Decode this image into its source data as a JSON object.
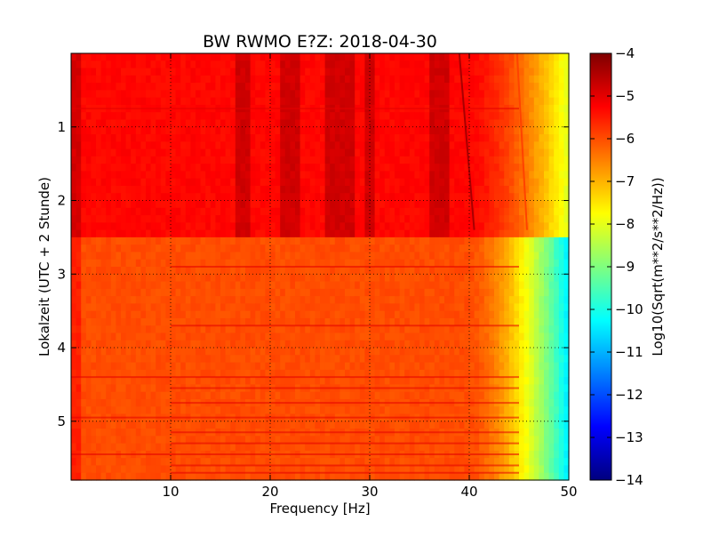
{
  "chart_data": {
    "type": "heatmap",
    "title": "BW RWMO E?Z: 2018-04-30",
    "xlabel": "Frequency [Hz]",
    "ylabel": "Lokalzeit (UTC + 2 Stunde)",
    "xlim": [
      0,
      50
    ],
    "ylim": [
      5.8,
      0
    ],
    "x_ticks": [
      10,
      20,
      30,
      40,
      50
    ],
    "y_ticks": [
      1,
      2,
      3,
      4,
      5
    ],
    "grid": true,
    "colormap": "jet",
    "colorbar": {
      "label": "Log10(Sqrt(m**2/s**2/Hz))",
      "range": [
        -14,
        -4
      ],
      "ticks": [
        -4,
        -5,
        -6,
        -7,
        -8,
        -9,
        -10,
        -11,
        -12,
        -13,
        -14
      ]
    },
    "features": {
      "high_energy_period_hours": [
        0,
        2.45
      ],
      "regime_change_hour": 2.45,
      "low_level_background": -6.0,
      "high_level_background": -5.3,
      "falloff_start_hz": 40,
      "falloff_end_hz": 50,
      "falloff_min_value": -10.5,
      "drifting_lines": [
        {
          "f_start_hz": 39.0,
          "f_end_hz": 40.5,
          "t_start_h": 0,
          "t_end_h": 2.4,
          "value": -4.4
        },
        {
          "f_start_hz": 44.8,
          "f_end_hz": 45.8,
          "t_start_h": 0,
          "t_end_h": 2.4,
          "value": -5.9
        }
      ],
      "strong_bands_hz": [
        {
          "f0": 16.5,
          "f1": 18.0
        },
        {
          "f0": 21.0,
          "f1": 23.0
        },
        {
          "f0": 25.5,
          "f1": 28.5
        },
        {
          "f0": 29.5,
          "f1": 30.5
        },
        {
          "f0": 36.0,
          "f1": 38.0
        }
      ],
      "horizontal_events_h": [
        0.75,
        2.9,
        3.7,
        4.4,
        4.55,
        4.75,
        4.95,
        5.15,
        5.3,
        5.45,
        5.6,
        5.7
      ]
    }
  }
}
